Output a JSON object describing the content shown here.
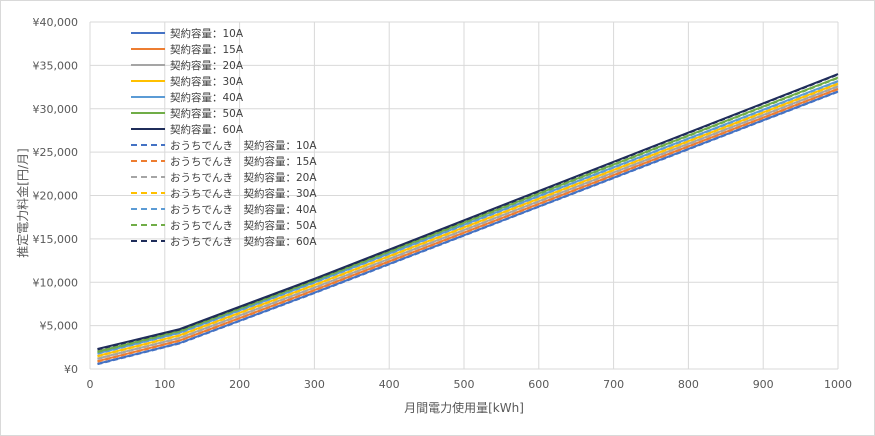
{
  "chart_data": {
    "type": "line",
    "xlabel": "月間電力使用量[kWh]",
    "ylabel": "推定電力料金[円/月]",
    "xlim": [
      0,
      1000
    ],
    "ylim": [
      0,
      40000
    ],
    "x_ticks": [
      0,
      100,
      200,
      300,
      400,
      500,
      600,
      700,
      800,
      900,
      1000
    ],
    "y_ticks": [
      0,
      5000,
      10000,
      15000,
      20000,
      25000,
      30000,
      35000,
      40000
    ],
    "y_tick_labels": [
      "¥0",
      "¥5,000",
      "¥10,000",
      "¥15,000",
      "¥20,000",
      "¥25,000",
      "¥30,000",
      "¥35,000",
      "¥40,000"
    ],
    "grid": "both",
    "legend_position": "top-left",
    "x": [
      10,
      120,
      300,
      1000
    ],
    "series": [
      {
        "name": "契約容量：10A",
        "style": "solid",
        "color": "#4472C4",
        "values": [
          600,
          3000,
          8800,
          32000
        ]
      },
      {
        "name": "契約容量：15A",
        "style": "solid",
        "color": "#ED7D31",
        "values": [
          900,
          3300,
          9100,
          32300
        ]
      },
      {
        "name": "契約容量：20A",
        "style": "solid",
        "color": "#A5A5A5",
        "values": [
          1200,
          3600,
          9400,
          32600
        ]
      },
      {
        "name": "契約容量：30A",
        "style": "solid",
        "color": "#FFC000",
        "values": [
          1500,
          3900,
          9700,
          32900
        ]
      },
      {
        "name": "契約容量：40A",
        "style": "solid",
        "color": "#5B9BD5",
        "values": [
          1800,
          4200,
          10000,
          33200
        ]
      },
      {
        "name": "契約容量：50A",
        "style": "solid",
        "color": "#70AD47",
        "values": [
          2000,
          4400,
          10200,
          33600
        ]
      },
      {
        "name": "契約容量：60A",
        "style": "solid",
        "color": "#1F2D5A",
        "values": [
          2300,
          4600,
          10400,
          34000
        ]
      },
      {
        "name": "おうちでんき　契約容量：10A",
        "style": "dashed",
        "color": "#4472C4",
        "values": [
          550,
          2950,
          8750,
          31950
        ]
      },
      {
        "name": "おうちでんき　契約容量：15A",
        "style": "dashed",
        "color": "#ED7D31",
        "values": [
          850,
          3250,
          9050,
          32250
        ]
      },
      {
        "name": "おうちでんき　契約容量：20A",
        "style": "dashed",
        "color": "#A5A5A5",
        "values": [
          1150,
          3550,
          9350,
          32550
        ]
      },
      {
        "name": "おうちでんき　契約容量：30A",
        "style": "dashed",
        "color": "#FFC000",
        "values": [
          1450,
          3850,
          9650,
          32850
        ]
      },
      {
        "name": "おうちでんき　契約容量：40A",
        "style": "dashed",
        "color": "#5B9BD5",
        "values": [
          1750,
          4150,
          9950,
          33150
        ]
      },
      {
        "name": "おうちでんき　契約容量：50A",
        "style": "dashed",
        "color": "#70AD47",
        "values": [
          1950,
          4350,
          10150,
          33550
        ]
      },
      {
        "name": "おうちでんき　契約容量：60A",
        "style": "dashed",
        "color": "#1F2D5A",
        "values": [
          2250,
          4550,
          10350,
          33950
        ]
      }
    ]
  }
}
